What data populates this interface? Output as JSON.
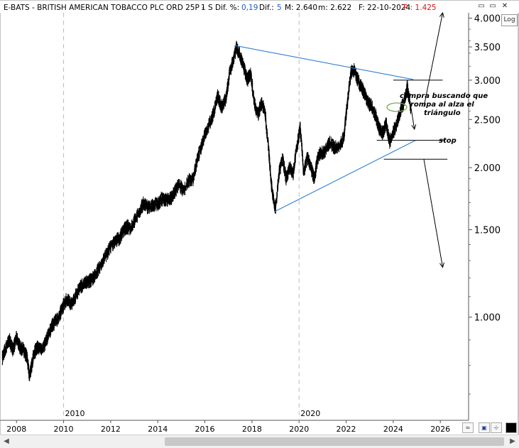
{
  "header": {
    "title": "E-BATS - BRITISH AMERICAN TOBACCO PLC ORD 25P -",
    "period": "1 S",
    "dif_pct_label": "Dif. %:",
    "dif_pct_value": "0,19",
    "dif_label": "Dif.:",
    "dif_value": "5",
    "max_label": "M: 2.640",
    "min_label": "m: 2.622",
    "date_label": "F: 22-10-2024",
    "p_label": "P : 1.425"
  },
  "window": {
    "minimize": "▭",
    "restore": "▭",
    "close": "✕"
  },
  "log_button": "Log",
  "annotations": {
    "compra_line1": "compra buscando que",
    "compra_line2": "rompa al alza el",
    "compra_line3": "triángulo",
    "stop": "stop"
  },
  "colors": {
    "accent_blue": "#1e5bd6",
    "price_red": "#e01010",
    "trendline_blue": "#2f7fd6",
    "ellipse_green": "#77aa55"
  },
  "chart_data": {
    "type": "line",
    "series": [
      {
        "values": [
          [
            2007.4,
            830
          ],
          [
            2007.55,
            870
          ],
          [
            2007.7,
            900
          ],
          [
            2007.85,
            860
          ],
          [
            2008.0,
            910
          ],
          [
            2008.15,
            870
          ],
          [
            2008.3,
            860
          ],
          [
            2008.45,
            830
          ],
          [
            2008.55,
            760
          ],
          [
            2008.65,
            800
          ],
          [
            2008.75,
            850
          ],
          [
            2008.9,
            870
          ],
          [
            2009.05,
            860
          ],
          [
            2009.2,
            880
          ],
          [
            2009.35,
            920
          ],
          [
            2009.5,
            960
          ],
          [
            2009.65,
            980
          ],
          [
            2009.8,
            1000
          ],
          [
            2010.0,
            1060
          ],
          [
            2010.15,
            1090
          ],
          [
            2010.3,
            1060
          ],
          [
            2010.5,
            1100
          ],
          [
            2010.7,
            1150
          ],
          [
            2010.9,
            1170
          ],
          [
            2011.05,
            1180
          ],
          [
            2011.2,
            1190
          ],
          [
            2011.4,
            1230
          ],
          [
            2011.6,
            1280
          ],
          [
            2011.8,
            1330
          ],
          [
            2012.0,
            1390
          ],
          [
            2012.2,
            1420
          ],
          [
            2012.4,
            1450
          ],
          [
            2012.55,
            1500
          ],
          [
            2012.7,
            1520
          ],
          [
            2012.85,
            1510
          ],
          [
            2013.0,
            1560
          ],
          [
            2013.2,
            1620
          ],
          [
            2013.4,
            1700
          ],
          [
            2013.6,
            1660
          ],
          [
            2013.8,
            1680
          ],
          [
            2014.0,
            1690
          ],
          [
            2014.15,
            1730
          ],
          [
            2014.3,
            1720
          ],
          [
            2014.45,
            1730
          ],
          [
            2014.6,
            1740
          ],
          [
            2014.75,
            1800
          ],
          [
            2014.9,
            1850
          ],
          [
            2015.1,
            1800
          ],
          [
            2015.3,
            1880
          ],
          [
            2015.5,
            1900
          ],
          [
            2015.7,
            2100
          ],
          [
            2015.85,
            2200
          ],
          [
            2016.0,
            2350
          ],
          [
            2016.2,
            2450
          ],
          [
            2016.4,
            2600
          ],
          [
            2016.55,
            2800
          ],
          [
            2016.7,
            2650
          ],
          [
            2016.9,
            2750
          ],
          [
            2017.05,
            3100
          ],
          [
            2017.2,
            3300
          ],
          [
            2017.35,
            3500
          ],
          [
            2017.5,
            3350
          ],
          [
            2017.65,
            3200
          ],
          [
            2017.8,
            3000
          ],
          [
            2017.95,
            3100
          ],
          [
            2018.1,
            2700
          ],
          [
            2018.25,
            2550
          ],
          [
            2018.4,
            2700
          ],
          [
            2018.55,
            2600
          ],
          [
            2018.7,
            2200
          ],
          [
            2018.85,
            1800
          ],
          [
            2019.0,
            1650
          ],
          [
            2019.15,
            1950
          ],
          [
            2019.3,
            2100
          ],
          [
            2019.45,
            1900
          ],
          [
            2019.6,
            2000
          ],
          [
            2019.75,
            1950
          ],
          [
            2019.9,
            2200
          ],
          [
            2020.05,
            2400
          ],
          [
            2020.2,
            1950
          ],
          [
            2020.35,
            2100
          ],
          [
            2020.5,
            2000
          ],
          [
            2020.65,
            1900
          ],
          [
            2020.8,
            2100
          ],
          [
            2020.95,
            2150
          ],
          [
            2021.1,
            2150
          ],
          [
            2021.3,
            2250
          ],
          [
            2021.5,
            2200
          ],
          [
            2021.7,
            2200
          ],
          [
            2021.9,
            2300
          ],
          [
            2022.05,
            2700
          ],
          [
            2022.2,
            3100
          ],
          [
            2022.35,
            3150
          ],
          [
            2022.5,
            3000
          ],
          [
            2022.65,
            2900
          ],
          [
            2022.8,
            2800
          ],
          [
            2022.95,
            2700
          ],
          [
            2023.1,
            2650
          ],
          [
            2023.25,
            2550
          ],
          [
            2023.4,
            2400
          ],
          [
            2023.55,
            2350
          ],
          [
            2023.7,
            2450
          ],
          [
            2023.85,
            2250
          ],
          [
            2024.0,
            2350
          ],
          [
            2024.15,
            2450
          ],
          [
            2024.3,
            2600
          ],
          [
            2024.45,
            2700
          ],
          [
            2024.6,
            2900
          ],
          [
            2024.75,
            2640
          ]
        ]
      }
    ],
    "x_ticks": [
      "2008",
      "2010",
      "2012",
      "2014",
      "2016",
      "2018",
      "2020",
      "2022",
      "2024",
      "2026"
    ],
    "x_tick_values": [
      2008,
      2010,
      2012,
      2014,
      2016,
      2018,
      2020,
      2022,
      2024,
      2026
    ],
    "x_minor_labels": [
      "2010",
      "2020"
    ],
    "y_ticks": [
      "1.000",
      "1.500",
      "2.000",
      "2.500",
      "3.000",
      "3.500",
      "4.000"
    ],
    "y_tick_values": [
      1000,
      1500,
      2000,
      2500,
      3000,
      3500,
      4000
    ],
    "y_scale": "log",
    "xlim": [
      2007.3,
      2027.2
    ],
    "ylim": [
      620,
      4100
    ],
    "grid": "dashed vertical at 2010 and 2020",
    "trendlines": [
      {
        "from": [
          2017.3,
          3520
        ],
        "to": [
          2024.85,
          3010
        ]
      },
      {
        "from": [
          2018.95,
          1630
        ],
        "to": [
          2024.95,
          2270
        ]
      }
    ],
    "horizontal_levels": [
      {
        "value": 3000,
        "from": 2024.0,
        "to": 2026.1
      },
      {
        "value": 2270,
        "from": 2023.3,
        "to": 2026.2
      },
      {
        "value": 2080,
        "from": 2023.6,
        "to": 2026.3
      }
    ],
    "arrows": [
      {
        "from": [
          2024.6,
          2940
        ],
        "to": [
          2024.9,
          2390
        ]
      },
      {
        "from": [
          2025.3,
          2650
        ],
        "to": [
          2026.1,
          4100
        ]
      },
      {
        "from": [
          2025.3,
          2080
        ],
        "to": [
          2026.1,
          1260
        ]
      }
    ]
  }
}
